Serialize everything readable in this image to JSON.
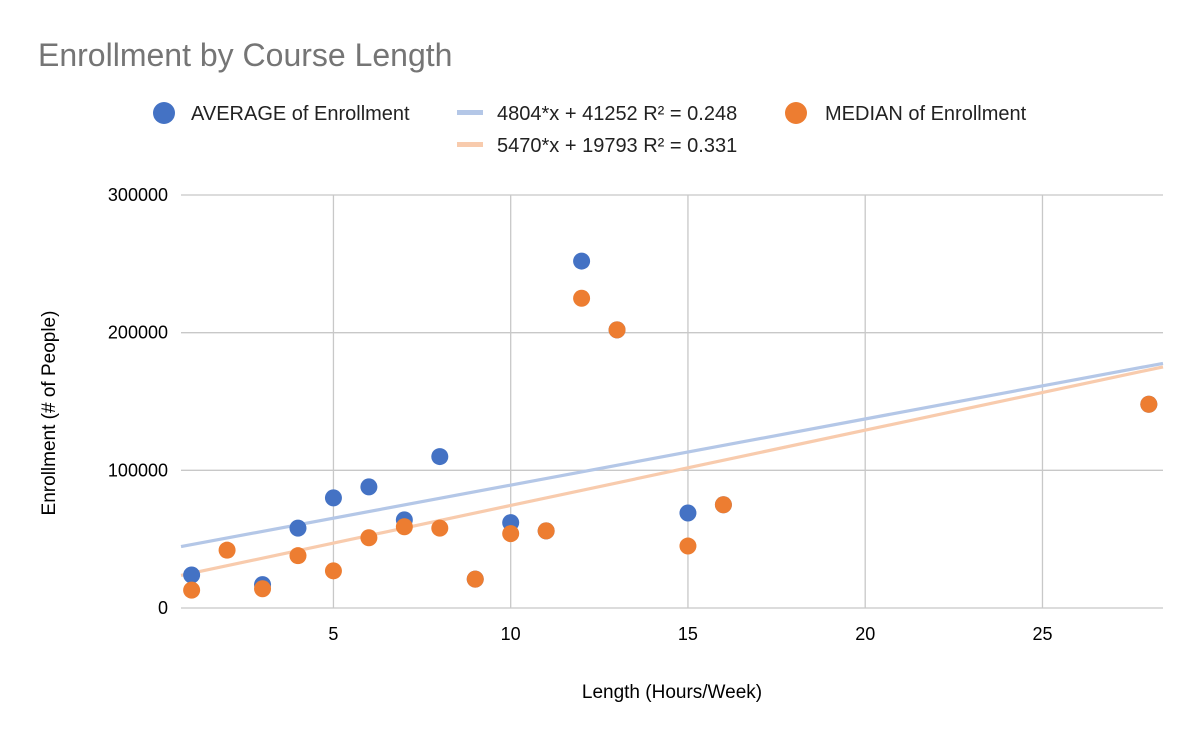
{
  "chart_data": {
    "type": "scatter",
    "title": "Enrollment by Course Length",
    "xlabel": "Length (Hours/Week)",
    "ylabel": "Enrollment (# of People)",
    "xlim": [
      0.7,
      28.4
    ],
    "ylim": [
      0,
      300000
    ],
    "x_ticks": [
      5,
      10,
      15,
      20,
      25
    ],
    "y_ticks": [
      0,
      100000,
      200000,
      300000
    ],
    "grid": true,
    "legend_position": "top",
    "series": [
      {
        "name": "AVERAGE of Enrollment",
        "color": "#4472C4",
        "points": [
          {
            "x": 1,
            "y": 24000
          },
          {
            "x": 3,
            "y": 17000
          },
          {
            "x": 4,
            "y": 58000
          },
          {
            "x": 5,
            "y": 80000
          },
          {
            "x": 6,
            "y": 88000
          },
          {
            "x": 7,
            "y": 64000
          },
          {
            "x": 8,
            "y": 110000
          },
          {
            "x": 9,
            "y": 21000
          },
          {
            "x": 10,
            "y": 62000
          },
          {
            "x": 11,
            "y": 56000
          },
          {
            "x": 12,
            "y": 252000
          },
          {
            "x": 13,
            "y": 202000
          },
          {
            "x": 15,
            "y": 69000
          },
          {
            "x": 16,
            "y": 75000
          },
          {
            "x": 28,
            "y": 148000
          }
        ],
        "trendline": {
          "label": "4804*x + 41252 R² = 0.248",
          "slope": 4804,
          "intercept": 41252,
          "color": "#B4C7E7"
        }
      },
      {
        "name": "MEDIAN of Enrollment",
        "color": "#ED7D31",
        "points": [
          {
            "x": 1,
            "y": 13000
          },
          {
            "x": 2,
            "y": 42000
          },
          {
            "x": 3,
            "y": 14000
          },
          {
            "x": 4,
            "y": 38000
          },
          {
            "x": 5,
            "y": 27000
          },
          {
            "x": 6,
            "y": 51000
          },
          {
            "x": 7,
            "y": 59000
          },
          {
            "x": 8,
            "y": 58000
          },
          {
            "x": 9,
            "y": 21000
          },
          {
            "x": 10,
            "y": 54000
          },
          {
            "x": 11,
            "y": 56000
          },
          {
            "x": 12,
            "y": 225000
          },
          {
            "x": 13,
            "y": 202000
          },
          {
            "x": 15,
            "y": 45000
          },
          {
            "x": 16,
            "y": 75000
          },
          {
            "x": 28,
            "y": 148000
          }
        ],
        "trendline": {
          "label": "5470*x + 19793 R² = 0.331",
          "slope": 5470,
          "intercept": 19793,
          "color": "#F8CBAD"
        }
      }
    ]
  }
}
